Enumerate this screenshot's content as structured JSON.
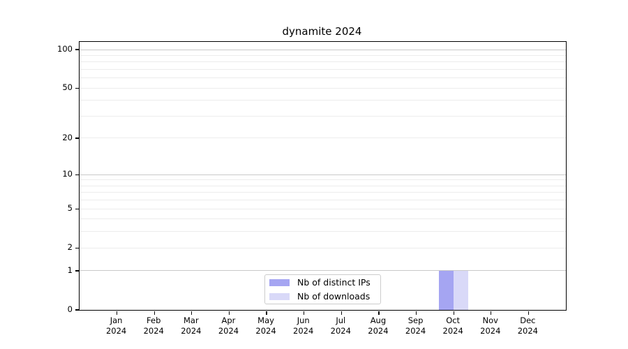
{
  "chart_data": {
    "type": "bar",
    "title": "dynamite 2024",
    "xlabel": "",
    "ylabel": "",
    "categories": [
      "Jan",
      "Feb",
      "Mar",
      "Apr",
      "May",
      "Jun",
      "Jul",
      "Aug",
      "Sep",
      "Oct",
      "Nov",
      "Dec"
    ],
    "year_label": "2024",
    "series": [
      {
        "name": "Nb of distinct IPs",
        "color": "#a5a5f2",
        "values": [
          0,
          0,
          0,
          0,
          0,
          0,
          0,
          0,
          0,
          1,
          0,
          0
        ]
      },
      {
        "name": "Nb of downloads",
        "color": "#d9d9f8",
        "values": [
          0,
          0,
          0,
          0,
          0,
          0,
          0,
          0,
          0,
          1,
          0,
          0
        ]
      }
    ],
    "y_scale": "log10(1+x)",
    "ylim": [
      0,
      115
    ],
    "y_ticks": [
      100,
      50,
      20,
      10,
      5,
      2,
      1,
      0
    ],
    "y_major_gridlines": [
      1,
      10,
      100
    ],
    "y_minor_gridlines": [
      2,
      3,
      4,
      5,
      6,
      7,
      8,
      9,
      20,
      30,
      40,
      50,
      60,
      70,
      80,
      90
    ],
    "grid": true,
    "legend_position": "lower-center-inside",
    "colors": {
      "axis": "#000000",
      "text": "#000000",
      "major_grid": "#c9c9c9",
      "minor_grid": "#ececec",
      "background": "#ffffff",
      "legend_border": "#cccccc"
    }
  }
}
